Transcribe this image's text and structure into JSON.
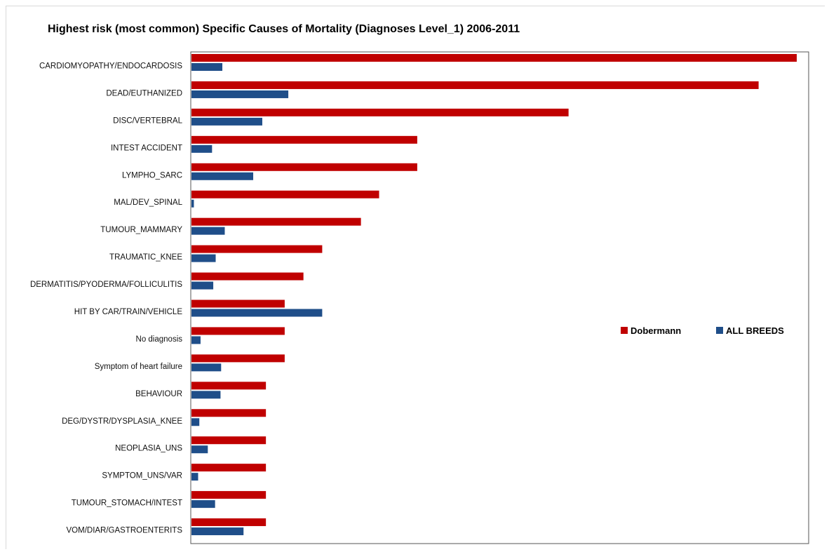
{
  "chart_data": {
    "type": "bar",
    "orientation": "horizontal",
    "title": "Highest risk (most common) Specific Causes of Mortality (Diagnoses Level_1) 2006-2011",
    "xlabel": "",
    "ylabel": "",
    "xlim": [
      0,
      100
    ],
    "grid": false,
    "legend_position": "right",
    "categories": [
      "CARDIOMYOPATHY/ENDOCARDOSIS",
      "DEAD/EUTHANIZED",
      "DISC/VERTEBRAL",
      "INTEST ACCIDENT",
      "LYMPHO_SARC",
      "MAL/DEV_SPINAL",
      "TUMOUR_MAMMARY",
      "TRAUMATIC_KNEE",
      "DERMATITIS/PYODERMA/FOLLICULITIS",
      "HIT BY CAR/TRAIN/VEHICLE",
      "No diagnosis",
      "Symptom of heart failure",
      "BEHAVIOUR",
      "DEG/DYSTR/DYSPLASIA_KNEE",
      "NEOPLASIA_UNS",
      "SYMPTOM_UNS/VAR",
      "TUMOUR_STOMACH/INTEST",
      "VOM/DIAR/GASTROENTERITS"
    ],
    "series": [
      {
        "name": "Dobermann",
        "color": "#c00000",
        "values": [
          100,
          93.7,
          62.3,
          37.3,
          37.3,
          31.0,
          28.0,
          21.6,
          18.5,
          15.4,
          15.4,
          15.4,
          12.3,
          12.3,
          12.3,
          12.3,
          12.3,
          12.3
        ]
      },
      {
        "name": "ALL BREEDS",
        "color": "#1f4e89",
        "values": [
          5.1,
          16.0,
          11.7,
          3.4,
          10.2,
          0.4,
          5.5,
          4.0,
          3.6,
          21.6,
          1.5,
          4.9,
          4.8,
          1.3,
          2.7,
          1.1,
          3.9,
          8.6
        ]
      }
    ]
  }
}
